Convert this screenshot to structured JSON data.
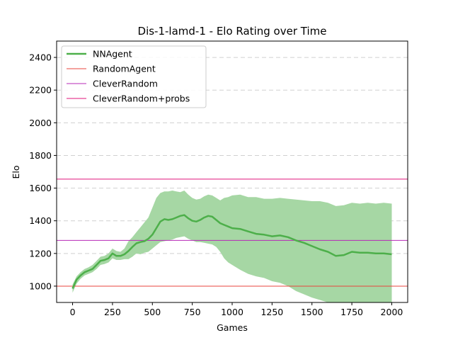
{
  "chart_data": {
    "type": "line",
    "title": "Dis-1-lamd-1 - Elo Rating over Time",
    "xlabel": "Games",
    "ylabel": "Elo",
    "xlim": [
      -100,
      2100
    ],
    "ylim": [
      900,
      2500
    ],
    "x_ticks": [
      0,
      250,
      500,
      750,
      1000,
      1250,
      1500,
      1750,
      2000
    ],
    "y_ticks": [
      1000,
      1200,
      1400,
      1600,
      1800,
      2000,
      2200,
      2400
    ],
    "x_tick_labels": [
      "0",
      "250",
      "500",
      "750",
      "1000",
      "1250",
      "1500",
      "1750",
      "2000"
    ],
    "y_tick_labels": [
      "1000",
      "1200",
      "1400",
      "1600",
      "1800",
      "2000",
      "2200",
      "2400"
    ],
    "grid": "y-dashed",
    "legend_position": "top-left",
    "series": [
      {
        "name": "NNAgent",
        "kind": "line-with-band",
        "color": "#4daf4a",
        "band_color": "#a6d7a4",
        "x": [
          0,
          25,
          50,
          75,
          100,
          125,
          150,
          175,
          200,
          225,
          250,
          275,
          300,
          325,
          350,
          375,
          400,
          425,
          450,
          475,
          500,
          525,
          550,
          575,
          600,
          625,
          650,
          675,
          700,
          725,
          750,
          775,
          800,
          825,
          850,
          875,
          900,
          925,
          950,
          975,
          1000,
          1050,
          1100,
          1150,
          1200,
          1250,
          1300,
          1350,
          1400,
          1450,
          1500,
          1550,
          1600,
          1650,
          1700,
          1750,
          1800,
          1850,
          1900,
          1950,
          2000
        ],
        "y": [
          985,
          1040,
          1065,
          1085,
          1095,
          1105,
          1130,
          1155,
          1160,
          1170,
          1200,
          1185,
          1185,
          1195,
          1215,
          1240,
          1262,
          1270,
          1275,
          1290,
          1315,
          1355,
          1395,
          1410,
          1405,
          1410,
          1420,
          1430,
          1435,
          1415,
          1400,
          1395,
          1405,
          1420,
          1430,
          1425,
          1405,
          1385,
          1375,
          1365,
          1355,
          1350,
          1335,
          1320,
          1315,
          1305,
          1310,
          1300,
          1280,
          1265,
          1245,
          1225,
          1210,
          1185,
          1190,
          1210,
          1205,
          1205,
          1200,
          1200,
          1195
        ],
        "upper": [
          1010,
          1060,
          1085,
          1105,
          1115,
          1130,
          1155,
          1180,
          1185,
          1200,
          1230,
          1215,
          1210,
          1230,
          1275,
          1300,
          1330,
          1360,
          1390,
          1420,
          1480,
          1540,
          1570,
          1580,
          1580,
          1585,
          1580,
          1575,
          1585,
          1560,
          1540,
          1530,
          1535,
          1550,
          1560,
          1555,
          1540,
          1525,
          1540,
          1545,
          1555,
          1560,
          1545,
          1545,
          1535,
          1535,
          1540,
          1535,
          1530,
          1525,
          1520,
          1520,
          1510,
          1490,
          1495,
          1510,
          1505,
          1510,
          1505,
          1510,
          1505
        ],
        "lower": [
          960,
          1015,
          1045,
          1065,
          1075,
          1085,
          1105,
          1130,
          1135,
          1145,
          1170,
          1160,
          1160,
          1165,
          1165,
          1180,
          1200,
          1195,
          1205,
          1210,
          1230,
          1250,
          1270,
          1275,
          1280,
          1285,
          1295,
          1300,
          1305,
          1290,
          1280,
          1270,
          1270,
          1265,
          1260,
          1255,
          1240,
          1210,
          1170,
          1145,
          1130,
          1100,
          1075,
          1060,
          1050,
          1030,
          1020,
          1000,
          970,
          950,
          930,
          915,
          900,
          900,
          900,
          900,
          900,
          900,
          900,
          900,
          900
        ]
      },
      {
        "name": "RandomAgent",
        "kind": "hline",
        "color": "#e8453c",
        "y": 1000
      },
      {
        "name": "CleverRandom",
        "kind": "hline",
        "color": "#b729b7",
        "y": 1280
      },
      {
        "name": "CleverRandom+probs",
        "kind": "hline",
        "color": "#e0157a",
        "y": 1655
      }
    ]
  }
}
